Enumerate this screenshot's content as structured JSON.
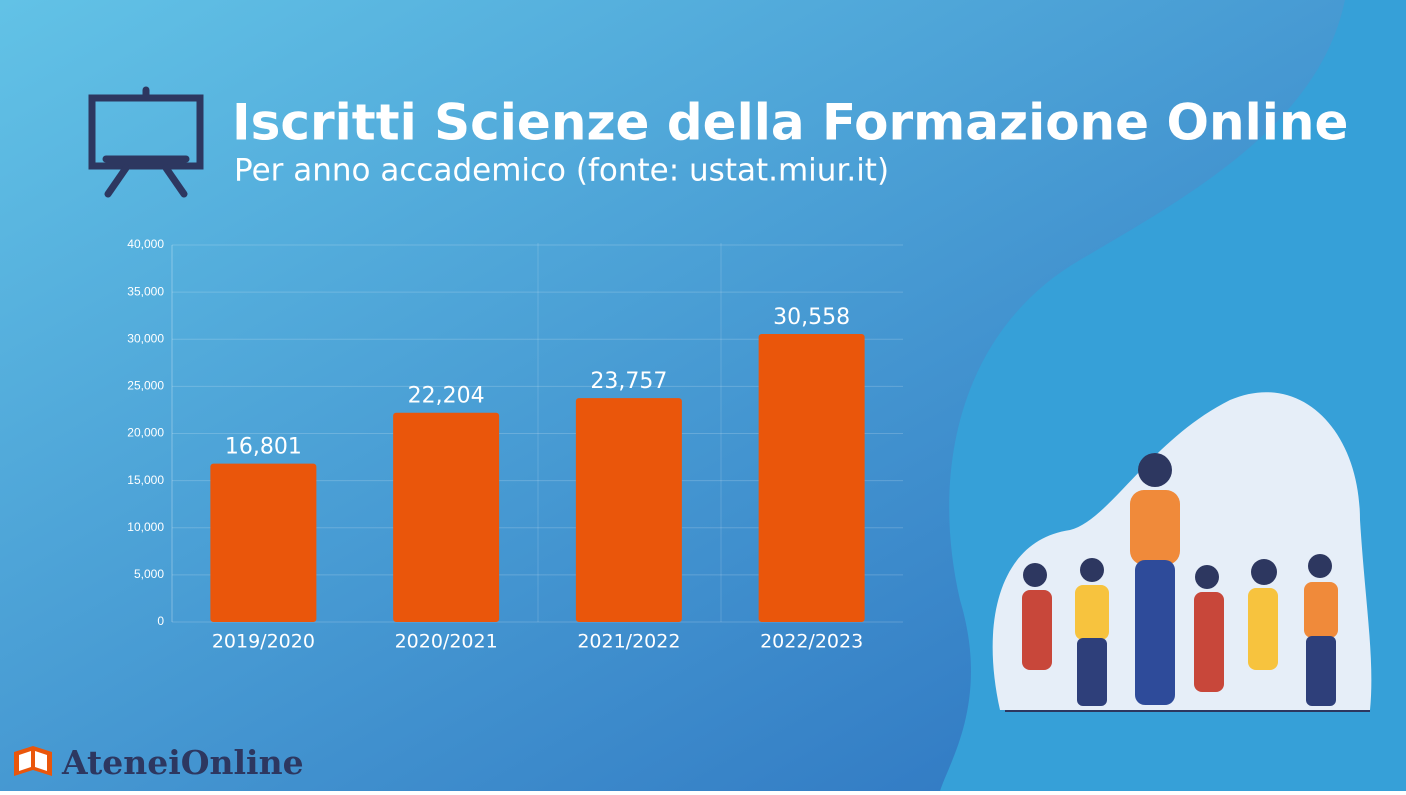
{
  "chart_data": {
    "type": "bar",
    "title": "Iscritti Scienze della Formazione Online",
    "subtitle": "Per anno accademico (fonte: ustat.miur.it)",
    "categories": [
      "2019/2020",
      "2020/2021",
      "2021/2022",
      "2022/2023"
    ],
    "values": [
      16801,
      22204,
      23757,
      30558
    ],
    "value_labels": [
      "16,801",
      "22,204",
      "23,757",
      "30,558"
    ],
    "color": "#ea560b",
    "ylim": [
      0,
      40000
    ],
    "yticks": [
      0,
      {
        "value": 5000,
        "label": "5,000"
      },
      {
        "value": 10000,
        "label": "10,000"
      },
      {
        "value": 15000,
        "label": "15,000"
      },
      {
        "value": 20000,
        "label": "20,000"
      },
      {
        "value": 25000,
        "label": "25,000"
      },
      {
        "value": 30000,
        "label": "30,000"
      },
      {
        "value": 35000,
        "label": "35,000"
      },
      {
        "value": 40000,
        "label": "40,000"
      }
    ],
    "grid": true
  },
  "brand": "AteneiOnline"
}
